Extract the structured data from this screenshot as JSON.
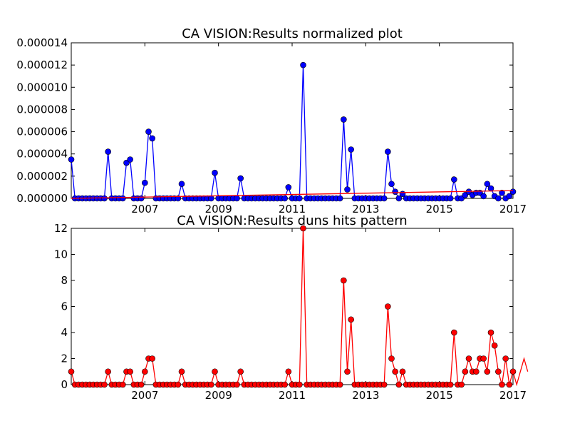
{
  "chart_data": [
    {
      "type": "line",
      "title": "CA VISION:Results normalized plot",
      "xlabel": "",
      "ylabel": "",
      "xlim": [
        2005.0,
        2017.0
      ],
      "ylim": [
        0,
        1.4e-05
      ],
      "x_ticks": [
        2007,
        2009,
        2011,
        2013,
        2015,
        2017
      ],
      "x_tick_labels": [
        "2007",
        "2009",
        "2011",
        "2013",
        "2015",
        "2017"
      ],
      "y_ticks": [
        0,
        2e-06,
        4e-06,
        6e-06,
        8e-06,
        1e-05,
        1.2e-05,
        1.4e-05
      ],
      "y_tick_labels": [
        "0.000000",
        "0.000002",
        "0.000004",
        "0.000006",
        "0.000008",
        "0.000010",
        "0.000012",
        "0.000014"
      ],
      "grid": false,
      "series": [
        {
          "color": "#0000ff",
          "marker": "circle",
          "points": [
            [
              2005.0,
              3.5e-06
            ],
            [
              2005.1,
              0
            ],
            [
              2005.2,
              0
            ],
            [
              2005.3,
              0
            ],
            [
              2005.4,
              0
            ],
            [
              2005.5,
              0
            ],
            [
              2005.6,
              0
            ],
            [
              2005.7,
              0
            ],
            [
              2005.8,
              0
            ],
            [
              2005.9,
              0
            ],
            [
              2006.0,
              4.2e-06
            ],
            [
              2006.1,
              0
            ],
            [
              2006.2,
              0
            ],
            [
              2006.3,
              0
            ],
            [
              2006.4,
              0
            ],
            [
              2006.5,
              3.2e-06
            ],
            [
              2006.6,
              3.5e-06
            ],
            [
              2006.7,
              0
            ],
            [
              2006.8,
              0
            ],
            [
              2006.9,
              0
            ],
            [
              2007.0,
              1.4e-06
            ],
            [
              2007.1,
              6e-06
            ],
            [
              2007.2,
              5.4e-06
            ],
            [
              2007.3,
              0
            ],
            [
              2007.4,
              0
            ],
            [
              2007.5,
              0
            ],
            [
              2007.6,
              0
            ],
            [
              2007.7,
              0
            ],
            [
              2007.8,
              0
            ],
            [
              2007.9,
              0
            ],
            [
              2008.0,
              1.3e-06
            ],
            [
              2008.1,
              0
            ],
            [
              2008.2,
              0
            ],
            [
              2008.3,
              0
            ],
            [
              2008.4,
              0
            ],
            [
              2008.5,
              0
            ],
            [
              2008.6,
              0
            ],
            [
              2008.7,
              0
            ],
            [
              2008.8,
              0
            ],
            [
              2008.9,
              2.3e-06
            ],
            [
              2009.0,
              0
            ],
            [
              2009.1,
              0
            ],
            [
              2009.2,
              0
            ],
            [
              2009.3,
              0
            ],
            [
              2009.4,
              0
            ],
            [
              2009.5,
              0
            ],
            [
              2009.6,
              1.8e-06
            ],
            [
              2009.7,
              0
            ],
            [
              2009.8,
              0
            ],
            [
              2009.9,
              0
            ],
            [
              2010.0,
              0
            ],
            [
              2010.1,
              0
            ],
            [
              2010.2,
              0
            ],
            [
              2010.3,
              0
            ],
            [
              2010.4,
              0
            ],
            [
              2010.5,
              0
            ],
            [
              2010.6,
              0
            ],
            [
              2010.7,
              0
            ],
            [
              2010.8,
              0
            ],
            [
              2010.9,
              1e-06
            ],
            [
              2011.0,
              0
            ],
            [
              2011.1,
              0
            ],
            [
              2011.2,
              0
            ],
            [
              2011.3,
              1.2e-05
            ],
            [
              2011.4,
              0
            ],
            [
              2011.5,
              0
            ],
            [
              2011.6,
              0
            ],
            [
              2011.7,
              0
            ],
            [
              2011.8,
              0
            ],
            [
              2011.9,
              0
            ],
            [
              2012.0,
              0
            ],
            [
              2012.1,
              0
            ],
            [
              2012.2,
              0
            ],
            [
              2012.3,
              0
            ],
            [
              2012.4,
              7.1e-06
            ],
            [
              2012.5,
              8e-07
            ],
            [
              2012.6,
              4.4e-06
            ],
            [
              2012.7,
              0
            ],
            [
              2012.8,
              0
            ],
            [
              2012.9,
              0
            ],
            [
              2013.0,
              0
            ],
            [
              2013.1,
              0
            ],
            [
              2013.2,
              0
            ],
            [
              2013.3,
              0
            ],
            [
              2013.4,
              0
            ],
            [
              2013.5,
              0
            ],
            [
              2013.6,
              4.2e-06
            ],
            [
              2013.7,
              1.3e-06
            ],
            [
              2013.8,
              6e-07
            ],
            [
              2013.9,
              0
            ],
            [
              2014.0,
              4e-07
            ],
            [
              2014.1,
              0
            ],
            [
              2014.2,
              0
            ],
            [
              2014.3,
              0
            ],
            [
              2014.4,
              0
            ],
            [
              2014.5,
              0
            ],
            [
              2014.6,
              0
            ],
            [
              2014.7,
              0
            ],
            [
              2014.8,
              0
            ],
            [
              2014.9,
              0
            ],
            [
              2015.0,
              0
            ],
            [
              2015.1,
              0
            ],
            [
              2015.2,
              0
            ],
            [
              2015.3,
              0
            ],
            [
              2015.4,
              1.7e-06
            ],
            [
              2015.5,
              0
            ],
            [
              2015.6,
              0
            ],
            [
              2015.7,
              3e-07
            ],
            [
              2015.8,
              6e-07
            ],
            [
              2015.9,
              3e-07
            ],
            [
              2016.0,
              5e-07
            ],
            [
              2016.1,
              5e-07
            ],
            [
              2016.2,
              2e-07
            ],
            [
              2016.3,
              1.3e-06
            ],
            [
              2016.4,
              9e-07
            ],
            [
              2016.5,
              2e-07
            ],
            [
              2016.6,
              0
            ],
            [
              2016.7,
              5e-07
            ],
            [
              2016.8,
              0
            ],
            [
              2016.9,
              2e-07
            ],
            [
              2017.0,
              6e-07
            ]
          ]
        },
        {
          "color": "#ff0000",
          "marker": "none",
          "points": [
            [
              2005.0,
              0
            ],
            [
              2017.0,
              7e-07
            ]
          ]
        }
      ]
    },
    {
      "type": "line",
      "title": "CA VISION:Results duns hits pattern",
      "xlabel": "",
      "ylabel": "",
      "xlim": [
        2005.0,
        2017.0
      ],
      "ylim": [
        0,
        12
      ],
      "x_ticks": [
        2007,
        2009,
        2011,
        2013,
        2015,
        2017
      ],
      "x_tick_labels": [
        "2007",
        "2009",
        "2011",
        "2013",
        "2015",
        "2017"
      ],
      "y_ticks": [
        0,
        2,
        4,
        6,
        8,
        10,
        12
      ],
      "y_tick_labels": [
        "0",
        "2",
        "4",
        "6",
        "8",
        "10",
        "12"
      ],
      "grid": false,
      "series": [
        {
          "color": "#ff0000",
          "marker": "circle",
          "points": [
            [
              2005.0,
              1
            ],
            [
              2005.1,
              0
            ],
            [
              2005.2,
              0
            ],
            [
              2005.3,
              0
            ],
            [
              2005.4,
              0
            ],
            [
              2005.5,
              0
            ],
            [
              2005.6,
              0
            ],
            [
              2005.7,
              0
            ],
            [
              2005.8,
              0
            ],
            [
              2005.9,
              0
            ],
            [
              2006.0,
              1
            ],
            [
              2006.1,
              0
            ],
            [
              2006.2,
              0
            ],
            [
              2006.3,
              0
            ],
            [
              2006.4,
              0
            ],
            [
              2006.5,
              1
            ],
            [
              2006.6,
              1
            ],
            [
              2006.7,
              0
            ],
            [
              2006.8,
              0
            ],
            [
              2006.9,
              0
            ],
            [
              2007.0,
              1
            ],
            [
              2007.1,
              2
            ],
            [
              2007.2,
              2
            ],
            [
              2007.3,
              0
            ],
            [
              2007.4,
              0
            ],
            [
              2007.5,
              0
            ],
            [
              2007.6,
              0
            ],
            [
              2007.7,
              0
            ],
            [
              2007.8,
              0
            ],
            [
              2007.9,
              0
            ],
            [
              2008.0,
              1
            ],
            [
              2008.1,
              0
            ],
            [
              2008.2,
              0
            ],
            [
              2008.3,
              0
            ],
            [
              2008.4,
              0
            ],
            [
              2008.5,
              0
            ],
            [
              2008.6,
              0
            ],
            [
              2008.7,
              0
            ],
            [
              2008.8,
              0
            ],
            [
              2008.9,
              1
            ],
            [
              2009.0,
              0
            ],
            [
              2009.1,
              0
            ],
            [
              2009.2,
              0
            ],
            [
              2009.3,
              0
            ],
            [
              2009.4,
              0
            ],
            [
              2009.5,
              0
            ],
            [
              2009.6,
              1
            ],
            [
              2009.7,
              0
            ],
            [
              2009.8,
              0
            ],
            [
              2009.9,
              0
            ],
            [
              2010.0,
              0
            ],
            [
              2010.1,
              0
            ],
            [
              2010.2,
              0
            ],
            [
              2010.3,
              0
            ],
            [
              2010.4,
              0
            ],
            [
              2010.5,
              0
            ],
            [
              2010.6,
              0
            ],
            [
              2010.7,
              0
            ],
            [
              2010.8,
              0
            ],
            [
              2010.9,
              1
            ],
            [
              2011.0,
              0
            ],
            [
              2011.1,
              0
            ],
            [
              2011.2,
              0
            ],
            [
              2011.3,
              12
            ],
            [
              2011.4,
              0
            ],
            [
              2011.5,
              0
            ],
            [
              2011.6,
              0
            ],
            [
              2011.7,
              0
            ],
            [
              2011.8,
              0
            ],
            [
              2011.9,
              0
            ],
            [
              2012.0,
              0
            ],
            [
              2012.1,
              0
            ],
            [
              2012.2,
              0
            ],
            [
              2012.3,
              0
            ],
            [
              2012.4,
              8
            ],
            [
              2012.5,
              1
            ],
            [
              2012.6,
              5
            ],
            [
              2012.7,
              0
            ],
            [
              2012.8,
              0
            ],
            [
              2012.9,
              0
            ],
            [
              2013.0,
              0
            ],
            [
              2013.1,
              0
            ],
            [
              2013.2,
              0
            ],
            [
              2013.3,
              0
            ],
            [
              2013.4,
              0
            ],
            [
              2013.5,
              0
            ],
            [
              2013.6,
              6
            ],
            [
              2013.7,
              2
            ],
            [
              2013.8,
              1
            ],
            [
              2013.9,
              0
            ],
            [
              2014.0,
              1
            ],
            [
              2014.1,
              0
            ],
            [
              2014.2,
              0
            ],
            [
              2014.3,
              0
            ],
            [
              2014.4,
              0
            ],
            [
              2014.5,
              0
            ],
            [
              2014.6,
              0
            ],
            [
              2014.7,
              0
            ],
            [
              2014.8,
              0
            ],
            [
              2014.9,
              0
            ],
            [
              2015.0,
              0
            ],
            [
              2015.1,
              0
            ],
            [
              2015.2,
              0
            ],
            [
              2015.3,
              0
            ],
            [
              2015.4,
              4
            ],
            [
              2015.5,
              0
            ],
            [
              2015.6,
              0
            ],
            [
              2015.7,
              1
            ],
            [
              2015.8,
              2
            ],
            [
              2015.9,
              1
            ],
            [
              2016.0,
              1
            ],
            [
              2016.1,
              2
            ],
            [
              2016.2,
              2
            ],
            [
              2016.3,
              1
            ],
            [
              2016.4,
              4
            ],
            [
              2016.5,
              3
            ],
            [
              2016.6,
              1
            ],
            [
              2016.7,
              0
            ],
            [
              2016.8,
              2
            ],
            [
              2016.9,
              0
            ],
            [
              2017.0,
              1
            ],
            [
              2017.1,
              0
            ],
            [
              2017.2,
              1
            ],
            [
              2017.3,
              2
            ],
            [
              2017.4,
              1
            ]
          ]
        }
      ]
    }
  ]
}
